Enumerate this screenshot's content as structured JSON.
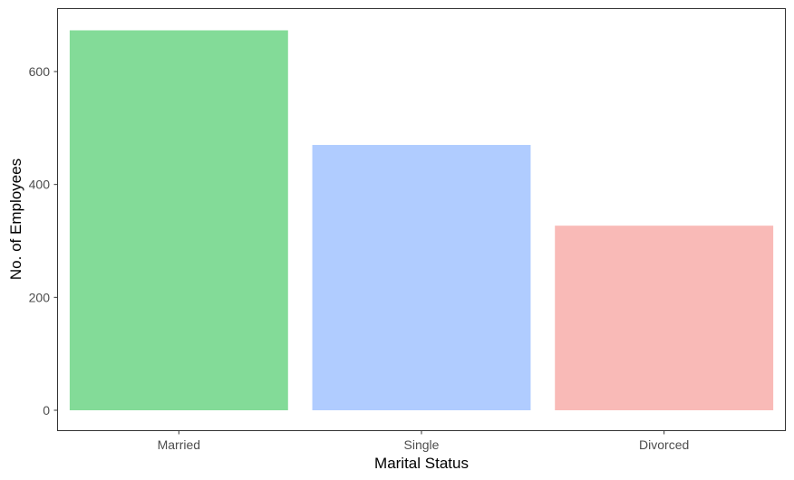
{
  "chart_data": {
    "type": "bar",
    "title": "",
    "xlabel": "Marital Status",
    "ylabel": "No. of Employees",
    "categories": [
      "Married",
      "Single",
      "Divorced"
    ],
    "values": [
      673,
      470,
      327
    ],
    "colors": [
      "#83db98",
      "#b0ccff",
      "#f9bab7"
    ],
    "ylim": [
      0,
      700
    ],
    "yticks": [
      0,
      200,
      400,
      600
    ],
    "grid": false,
    "legend": "none"
  }
}
